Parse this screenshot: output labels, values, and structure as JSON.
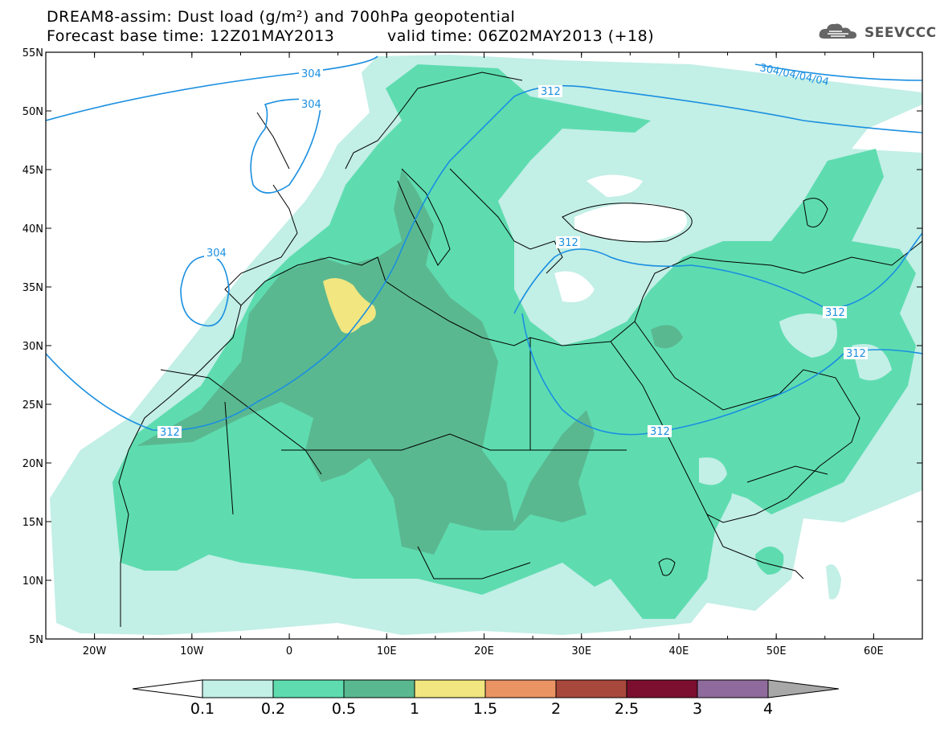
{
  "title_line1": "DREAM8-assim: Dust load (g/m²) and 700hPa geopotential",
  "title_line2": "Forecast base time: 12Z01MAY2013",
  "title_line2b": "valid time: 06Z02MAY2013 (+18)",
  "logo": {
    "icon": "cloud-icon",
    "text": "SEEVCCC"
  },
  "axes": {
    "lon_labels": [
      "20W",
      "10W",
      "0",
      "10E",
      "20E",
      "30E",
      "40E",
      "50E",
      "60E"
    ],
    "lat_labels": [
      "55N",
      "50N",
      "45N",
      "40N",
      "35N",
      "30N",
      "25N",
      "20N",
      "15N",
      "10N",
      "5N"
    ],
    "lon_range": [
      -25,
      65
    ],
    "lat_range": [
      5,
      55
    ]
  },
  "contour_labels": [
    "304",
    "304",
    "304",
    "304/04/04/04",
    "312",
    "312",
    "312",
    "312",
    "312",
    "312"
  ],
  "colorbar": {
    "ticks": [
      "0.1",
      "0.2",
      "0.5",
      "1",
      "1.5",
      "2",
      "2.5",
      "3",
      "4"
    ],
    "colors": [
      "#c2efe6",
      "#5edcb0",
      "#5ab890",
      "#f1e67f",
      "#ea9464",
      "#a8483c",
      "#7c0f30",
      "#8f6b9d"
    ]
  },
  "colors": {
    "dust_light": "#c2efe6",
    "dust_mid": "#5edcb0",
    "dust_dark": "#5ab890",
    "dust_yellow": "#f1e67f",
    "geopotential_line": "#1a8fe0",
    "coastline": "#000000"
  }
}
